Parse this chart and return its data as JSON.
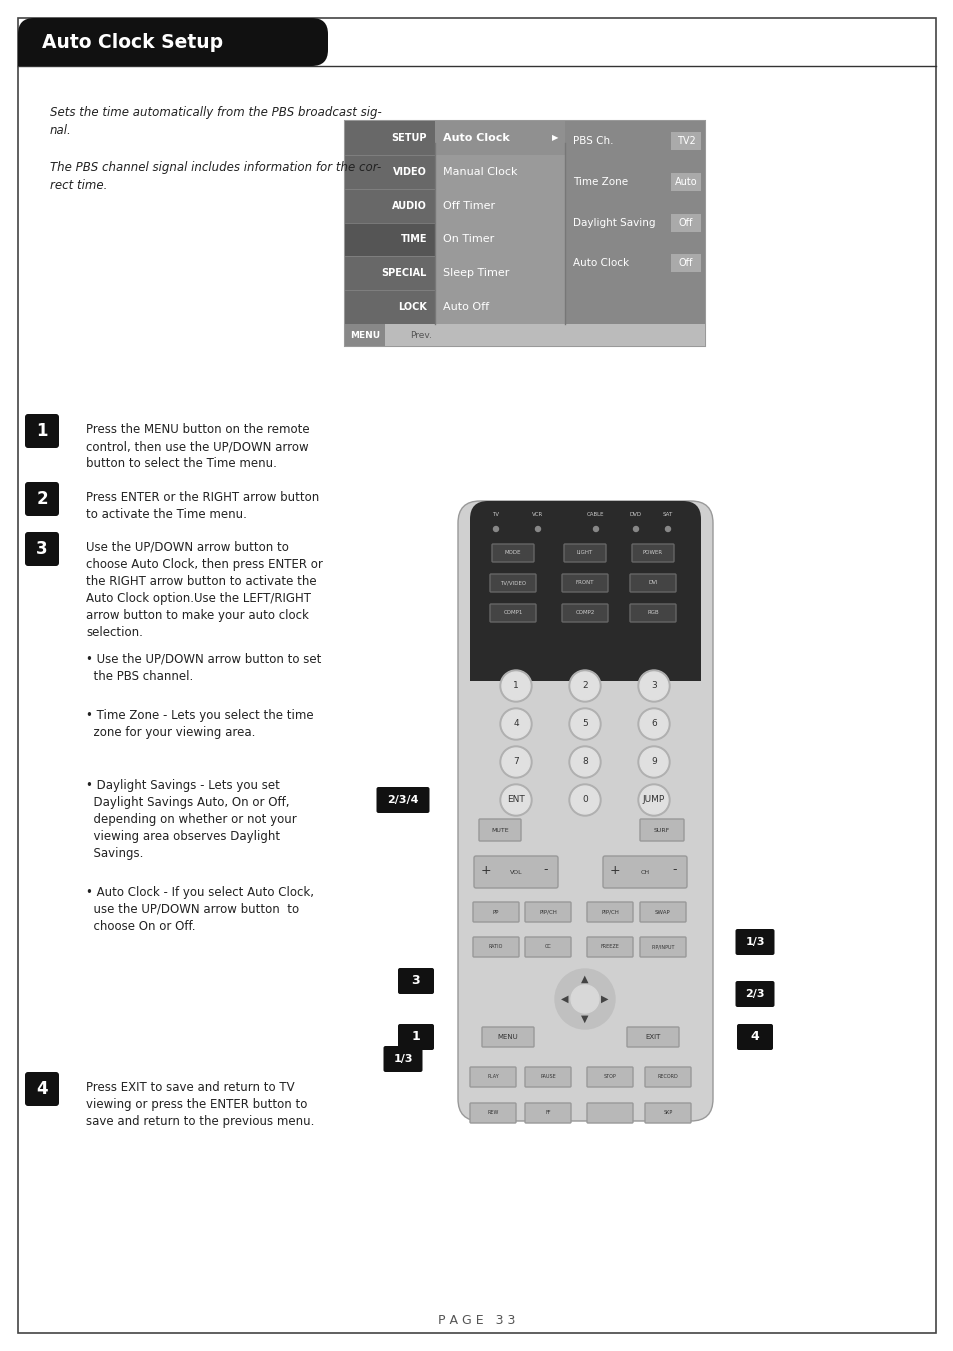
{
  "title": "Auto Clock Setup",
  "page_num": "P A G E   3 3",
  "bg_color": "#ffffff",
  "header_bg": "#111111",
  "header_text_color": "#ffffff",
  "border_color": "#444444",
  "italic_text1": "Sets the time automatically from the PBS broadcast sig-\nnal.",
  "italic_text2": "The PBS channel signal includes information for the cor-\nrect time.",
  "menu_left_items": [
    "SETUP",
    "VIDEO",
    "AUDIO",
    "TIME",
    "SPECIAL",
    "LOCK"
  ],
  "menu_center_items": [
    "Auto Clock",
    "Manual Clock",
    "Off Timer",
    "On Timer",
    "Sleep Timer",
    "Auto Off"
  ],
  "menu_right_labels": [
    "PBS Ch.",
    "Time Zone",
    "Daylight Saving",
    "Auto Clock"
  ],
  "menu_right_values": [
    "TV2",
    "Auto",
    "Off",
    "Off"
  ],
  "step_numbers": [
    "1",
    "2",
    "3",
    "4"
  ],
  "step1_text": "Press the MENU button on the remote\ncontrol, then use the UP/DOWN arrow\nbutton to select the Time menu.",
  "step2_text": "Press ENTER or the RIGHT arrow button\nto activate the Time menu.",
  "step3_main": "Use the UP/DOWN arrow button to\nchoose Auto Clock, then press ENTER or\nthe RIGHT arrow button to activate the\nAuto Clock option.Use the LEFT/RIGHT\narrow button to make your auto clock\nselection.",
  "step3_bullets": [
    "Use the UP/DOWN arrow button to set\n  the PBS channel.",
    "Time Zone - Lets you select the time\n  zone for your viewing area.",
    "Daylight Savings - Lets you set\n  Daylight Savings Auto, On or Off,\n  depending on whether or not your\n  viewing area observes Daylight\n  Savings.",
    "Auto Clock - If you select Auto Clock,\n  use the UP/DOWN arrow button  to\n  choose On or Off."
  ],
  "step4_text": "Press EXIT to save and return to TV\nviewing or press the ENTER button to\nsave and return to the previous menu.",
  "menu_col1_bg": "#666666",
  "menu_col2_top_bg": "#aaaaaa",
  "menu_col2_bg": "#999999",
  "menu_col2_highlight": "#888888",
  "menu_col3_bg": "#888888",
  "menu_outer_bg": "#cccccc",
  "menu_border": "#bbbbbb",
  "remote_body": "#d0d0d0",
  "remote_dark": "#2a2a2a",
  "remote_btn": "#b8b8b8",
  "remote_btn_dark": "#555555",
  "callout_bg": "#111111",
  "callout_text": "#ffffff"
}
